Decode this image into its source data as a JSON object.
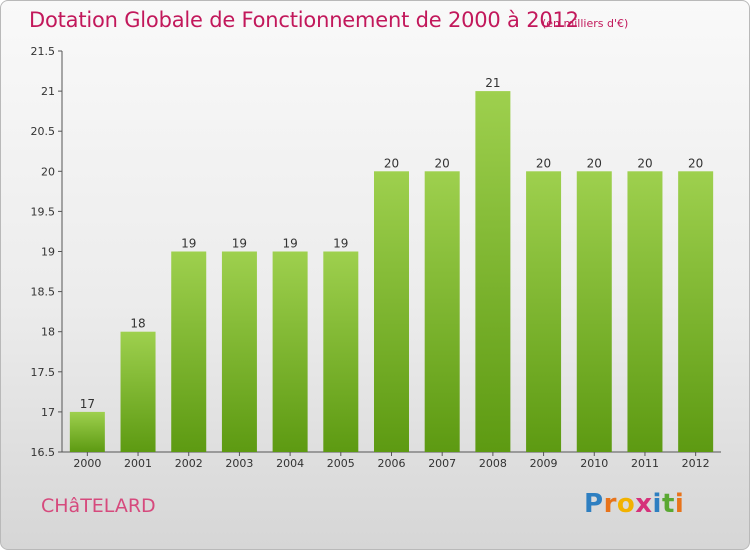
{
  "chart_data": {
    "type": "bar",
    "title": "Dotation Globale de Fonctionnement de 2000 à 2012",
    "unit_note": "(en milliers d'€)",
    "categories": [
      "2000",
      "2001",
      "2002",
      "2003",
      "2004",
      "2005",
      "2006",
      "2007",
      "2008",
      "2009",
      "2010",
      "2011",
      "2012"
    ],
    "values": [
      17,
      18,
      19,
      19,
      19,
      19,
      20,
      20,
      21,
      20,
      20,
      20,
      20
    ],
    "value_labels": [
      "17",
      "18",
      "19",
      "19",
      "19",
      "19",
      "20",
      "20",
      "21",
      "20",
      "20",
      "20",
      "20"
    ],
    "ylim": [
      16.5,
      21.5
    ],
    "yticks": [
      16.5,
      17,
      17.5,
      18,
      18.5,
      19,
      19.5,
      20,
      20.5,
      21,
      21.5
    ],
    "ytick_labels": [
      "16.5",
      "17",
      "17.5",
      "18",
      "18.5",
      "19",
      "19.5",
      "20",
      "20.5",
      "21",
      "21.5"
    ],
    "grid": false,
    "bar_color_top": "#9ed04e",
    "bar_color_bottom": "#5d9a12"
  },
  "commune": "CHâTELARD",
  "logo": {
    "letters": [
      "P",
      "r",
      "o",
      "x",
      "i",
      "t",
      "i"
    ],
    "colors": [
      "#2e7fc1",
      "#e8731a",
      "#f2b200",
      "#d6317a",
      "#2e7fc1",
      "#5aa832",
      "#e8731a"
    ]
  }
}
